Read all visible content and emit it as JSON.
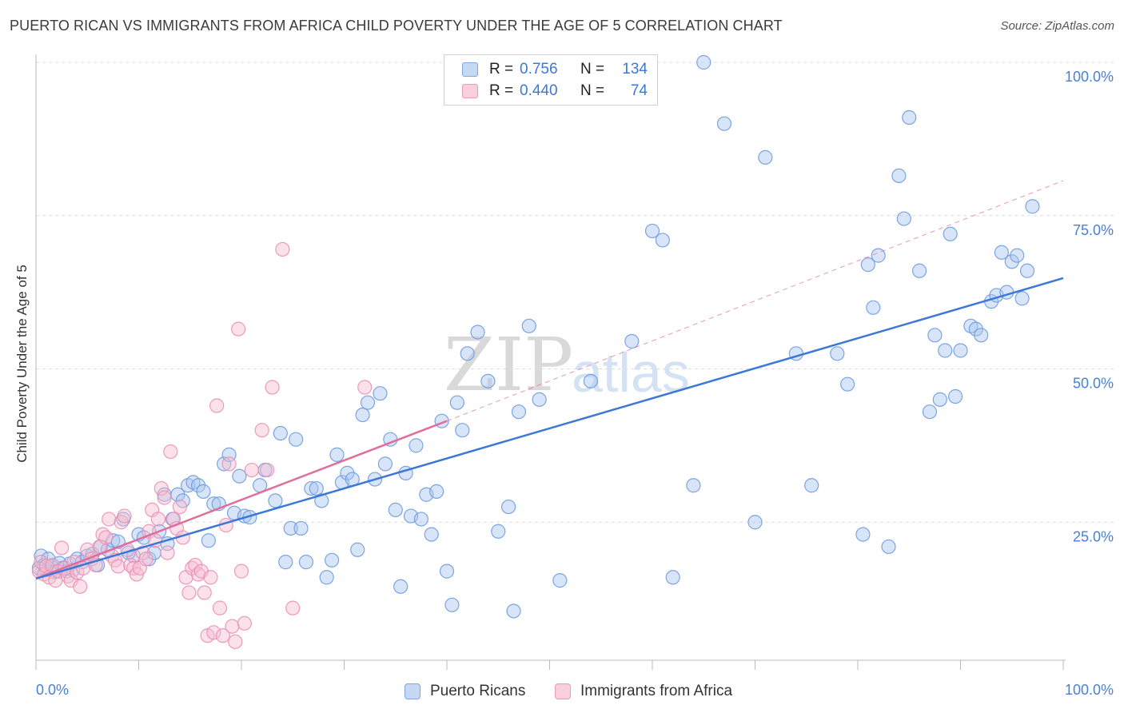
{
  "title": "PUERTO RICAN VS IMMIGRANTS FROM AFRICA CHILD POVERTY UNDER THE AGE OF 5 CORRELATION CHART",
  "source": "Source: ZipAtlas.com",
  "watermark": {
    "zip": "ZIP",
    "atlas": "atlas"
  },
  "colors": {
    "blue": "#3c78d8",
    "blue_fill": "#a9c6ef",
    "pink": "#e06e9a",
    "pink_fill": "#f6bcd0",
    "grid": "#dddddd"
  },
  "legend": {
    "rows": [
      {
        "r_label": "R =",
        "r_value": "0.756",
        "n_label": "N =",
        "n_value": "134"
      },
      {
        "r_label": "R =",
        "r_value": "0.440",
        "n_label": "N =",
        "n_value": "74"
      }
    ]
  },
  "chart_data": {
    "type": "scatter",
    "title": "PUERTO RICAN VS IMMIGRANTS FROM AFRICA CHILD POVERTY UNDER THE AGE OF 5 CORRELATION CHART",
    "xlabel": "",
    "ylabel": "Child Poverty Under the Age of 5",
    "xlim": [
      0,
      100
    ],
    "ylim": [
      0,
      100
    ],
    "x_tick_labels": [
      "0.0%",
      "100.0%"
    ],
    "y_tick_labels": [
      "25.0%",
      "50.0%",
      "75.0%",
      "100.0%"
    ],
    "y_ticks": [
      25,
      50,
      75,
      100
    ],
    "grid": true,
    "legend_position": "top-center",
    "series": [
      {
        "name": "Puerto Ricans",
        "color": "#3c78d8",
        "r": 0.756,
        "n": 134,
        "trend": {
          "x": [
            0,
            100
          ],
          "y": [
            15.8,
            64.8
          ]
        },
        "points": [
          [
            0.3,
            17.5
          ],
          [
            0.5,
            19.5
          ],
          [
            0.8,
            18.0
          ],
          [
            1.0,
            17.2
          ],
          [
            1.2,
            19.0
          ],
          [
            1.5,
            17.8
          ],
          [
            1.8,
            16.9
          ],
          [
            2.0,
            17.0
          ],
          [
            2.3,
            18.3
          ],
          [
            2.6,
            17.5
          ],
          [
            3.0,
            17.0
          ],
          [
            3.3,
            18.2
          ],
          [
            3.6,
            17.2
          ],
          [
            4.0,
            19.0
          ],
          [
            4.5,
            18.5
          ],
          [
            5.0,
            19.5
          ],
          [
            5.5,
            19.8
          ],
          [
            6.0,
            18.0
          ],
          [
            6.3,
            21.0
          ],
          [
            7.0,
            20.5
          ],
          [
            7.5,
            22.0
          ],
          [
            8.0,
            21.8
          ],
          [
            8.5,
            25.5
          ],
          [
            9.0,
            20.0
          ],
          [
            9.5,
            19.5
          ],
          [
            10.0,
            23.0
          ],
          [
            10.5,
            22.5
          ],
          [
            11.0,
            19.0
          ],
          [
            11.5,
            20.0
          ],
          [
            12.0,
            23.5
          ],
          [
            12.5,
            29.5
          ],
          [
            12.8,
            21.5
          ],
          [
            13.3,
            25.5
          ],
          [
            13.8,
            29.5
          ],
          [
            14.3,
            28.5
          ],
          [
            14.8,
            31.0
          ],
          [
            15.3,
            31.5
          ],
          [
            15.8,
            31.0
          ],
          [
            16.3,
            30.0
          ],
          [
            16.8,
            22.0
          ],
          [
            17.3,
            28.0
          ],
          [
            17.8,
            28.0
          ],
          [
            18.3,
            34.5
          ],
          [
            18.8,
            36.0
          ],
          [
            19.3,
            26.5
          ],
          [
            19.8,
            32.5
          ],
          [
            20.3,
            26.0
          ],
          [
            20.8,
            25.8
          ],
          [
            21.8,
            31.0
          ],
          [
            22.3,
            33.5
          ],
          [
            23.3,
            28.5
          ],
          [
            23.8,
            39.5
          ],
          [
            24.3,
            18.5
          ],
          [
            24.8,
            24.0
          ],
          [
            25.3,
            38.5
          ],
          [
            25.8,
            24.0
          ],
          [
            26.3,
            18.5
          ],
          [
            26.8,
            30.5
          ],
          [
            27.3,
            30.5
          ],
          [
            27.8,
            28.5
          ],
          [
            28.3,
            16.0
          ],
          [
            28.8,
            18.8
          ],
          [
            29.3,
            36.0
          ],
          [
            29.8,
            31.5
          ],
          [
            30.3,
            33.0
          ],
          [
            30.8,
            32.0
          ],
          [
            31.3,
            20.5
          ],
          [
            31.8,
            42.5
          ],
          [
            32.3,
            44.5
          ],
          [
            33.0,
            32.0
          ],
          [
            33.5,
            46.0
          ],
          [
            34.0,
            34.5
          ],
          [
            34.5,
            38.5
          ],
          [
            35.0,
            27.0
          ],
          [
            35.5,
            14.5
          ],
          [
            36.0,
            33.0
          ],
          [
            36.5,
            26.0
          ],
          [
            37.0,
            37.5
          ],
          [
            37.5,
            25.5
          ],
          [
            38.0,
            29.5
          ],
          [
            38.5,
            23.0
          ],
          [
            39.0,
            30.0
          ],
          [
            39.5,
            41.5
          ],
          [
            40.0,
            17.0
          ],
          [
            40.5,
            11.5
          ],
          [
            41.0,
            44.5
          ],
          [
            41.5,
            40.0
          ],
          [
            42.0,
            52.5
          ],
          [
            43.0,
            56.0
          ],
          [
            44.0,
            48.0
          ],
          [
            45.0,
            23.5
          ],
          [
            46.0,
            27.5
          ],
          [
            46.5,
            10.5
          ],
          [
            47.0,
            43.0
          ],
          [
            48.0,
            57.0
          ],
          [
            49.0,
            45.0
          ],
          [
            51.0,
            15.5
          ],
          [
            54.0,
            48.0
          ],
          [
            58.0,
            54.5
          ],
          [
            60.0,
            72.5
          ],
          [
            61.0,
            71.0
          ],
          [
            62.0,
            16.0
          ],
          [
            64.0,
            31.0
          ],
          [
            65.0,
            100.0
          ],
          [
            67.0,
            90.0
          ],
          [
            70.0,
            25.0
          ],
          [
            71.0,
            84.5
          ],
          [
            74.0,
            52.5
          ],
          [
            75.5,
            31.0
          ],
          [
            78.0,
            52.5
          ],
          [
            79.0,
            47.5
          ],
          [
            80.5,
            23.0
          ],
          [
            81.0,
            67.0
          ],
          [
            81.5,
            60.0
          ],
          [
            82.0,
            68.5
          ],
          [
            83.0,
            21.0
          ],
          [
            84.0,
            81.5
          ],
          [
            84.5,
            74.5
          ],
          [
            85.0,
            91.0
          ],
          [
            86.0,
            66.0
          ],
          [
            87.0,
            43.0
          ],
          [
            87.5,
            55.5
          ],
          [
            88.0,
            45.0
          ],
          [
            88.5,
            53.0
          ],
          [
            89.0,
            72.0
          ],
          [
            89.5,
            45.5
          ],
          [
            90.0,
            53.0
          ],
          [
            91.0,
            57.0
          ],
          [
            91.5,
            56.5
          ],
          [
            92.0,
            55.5
          ],
          [
            93.0,
            61.0
          ],
          [
            93.5,
            62.0
          ],
          [
            94.0,
            69.0
          ],
          [
            94.5,
            62.5
          ],
          [
            95.0,
            67.5
          ],
          [
            95.5,
            68.5
          ],
          [
            96.0,
            61.5
          ],
          [
            96.5,
            66.0
          ],
          [
            97.0,
            76.5
          ]
        ]
      },
      {
        "name": "Immigrants from Africa",
        "color": "#e06e9a",
        "r": 0.44,
        "n": 74,
        "trend": {
          "x": [
            0,
            40
          ],
          "y": [
            15.8,
            41.5
          ]
        },
        "trend_extended": {
          "x": [
            40,
            100
          ],
          "y": [
            41.5,
            80.7
          ]
        },
        "points": [
          [
            0.3,
            17.0
          ],
          [
            0.5,
            18.5
          ],
          [
            0.8,
            16.5
          ],
          [
            1.0,
            17.8
          ],
          [
            1.3,
            16.0
          ],
          [
            1.6,
            18.0
          ],
          [
            1.9,
            15.5
          ],
          [
            2.2,
            17.0
          ],
          [
            2.5,
            20.8
          ],
          [
            2.8,
            17.5
          ],
          [
            3.1,
            16.2
          ],
          [
            3.4,
            15.5
          ],
          [
            3.7,
            18.5
          ],
          [
            4.0,
            16.8
          ],
          [
            4.3,
            14.5
          ],
          [
            4.6,
            17.5
          ],
          [
            5.0,
            20.5
          ],
          [
            5.4,
            19.0
          ],
          [
            5.8,
            18.0
          ],
          [
            6.2,
            21.0
          ],
          [
            6.5,
            23.0
          ],
          [
            6.8,
            22.5
          ],
          [
            7.1,
            25.5
          ],
          [
            7.4,
            19.5
          ],
          [
            7.7,
            18.8
          ],
          [
            8.0,
            17.8
          ],
          [
            8.3,
            25.0
          ],
          [
            8.6,
            26.0
          ],
          [
            8.9,
            20.5
          ],
          [
            9.2,
            18.0
          ],
          [
            9.5,
            17.5
          ],
          [
            9.8,
            16.5
          ],
          [
            10.1,
            17.5
          ],
          [
            10.4,
            20.0
          ],
          [
            10.7,
            19.0
          ],
          [
            11.0,
            23.5
          ],
          [
            11.3,
            27.0
          ],
          [
            11.6,
            22.0
          ],
          [
            11.9,
            25.5
          ],
          [
            12.2,
            30.5
          ],
          [
            12.5,
            29.0
          ],
          [
            12.8,
            20.0
          ],
          [
            13.1,
            36.5
          ],
          [
            13.4,
            25.5
          ],
          [
            13.7,
            24.0
          ],
          [
            14.0,
            27.5
          ],
          [
            14.3,
            22.5
          ],
          [
            14.6,
            16.0
          ],
          [
            14.9,
            13.5
          ],
          [
            15.2,
            17.5
          ],
          [
            15.5,
            18.0
          ],
          [
            15.8,
            16.5
          ],
          [
            16.1,
            17.0
          ],
          [
            16.4,
            13.5
          ],
          [
            16.7,
            6.5
          ],
          [
            17.0,
            16.0
          ],
          [
            17.3,
            7.0
          ],
          [
            17.6,
            44.0
          ],
          [
            17.9,
            11.0
          ],
          [
            18.2,
            6.5
          ],
          [
            18.5,
            24.5
          ],
          [
            18.8,
            34.5
          ],
          [
            19.1,
            8.0
          ],
          [
            19.4,
            5.5
          ],
          [
            19.7,
            56.5
          ],
          [
            20.0,
            17.0
          ],
          [
            20.3,
            8.5
          ],
          [
            21.0,
            33.5
          ],
          [
            22.0,
            40.0
          ],
          [
            22.5,
            33.5
          ],
          [
            23.0,
            47.0
          ],
          [
            24.0,
            69.5
          ],
          [
            25.0,
            11.0
          ],
          [
            32.0,
            47.0
          ]
        ]
      }
    ]
  },
  "bottom_legend": [
    {
      "label": "Puerto Ricans"
    },
    {
      "label": "Immigrants from Africa"
    }
  ]
}
